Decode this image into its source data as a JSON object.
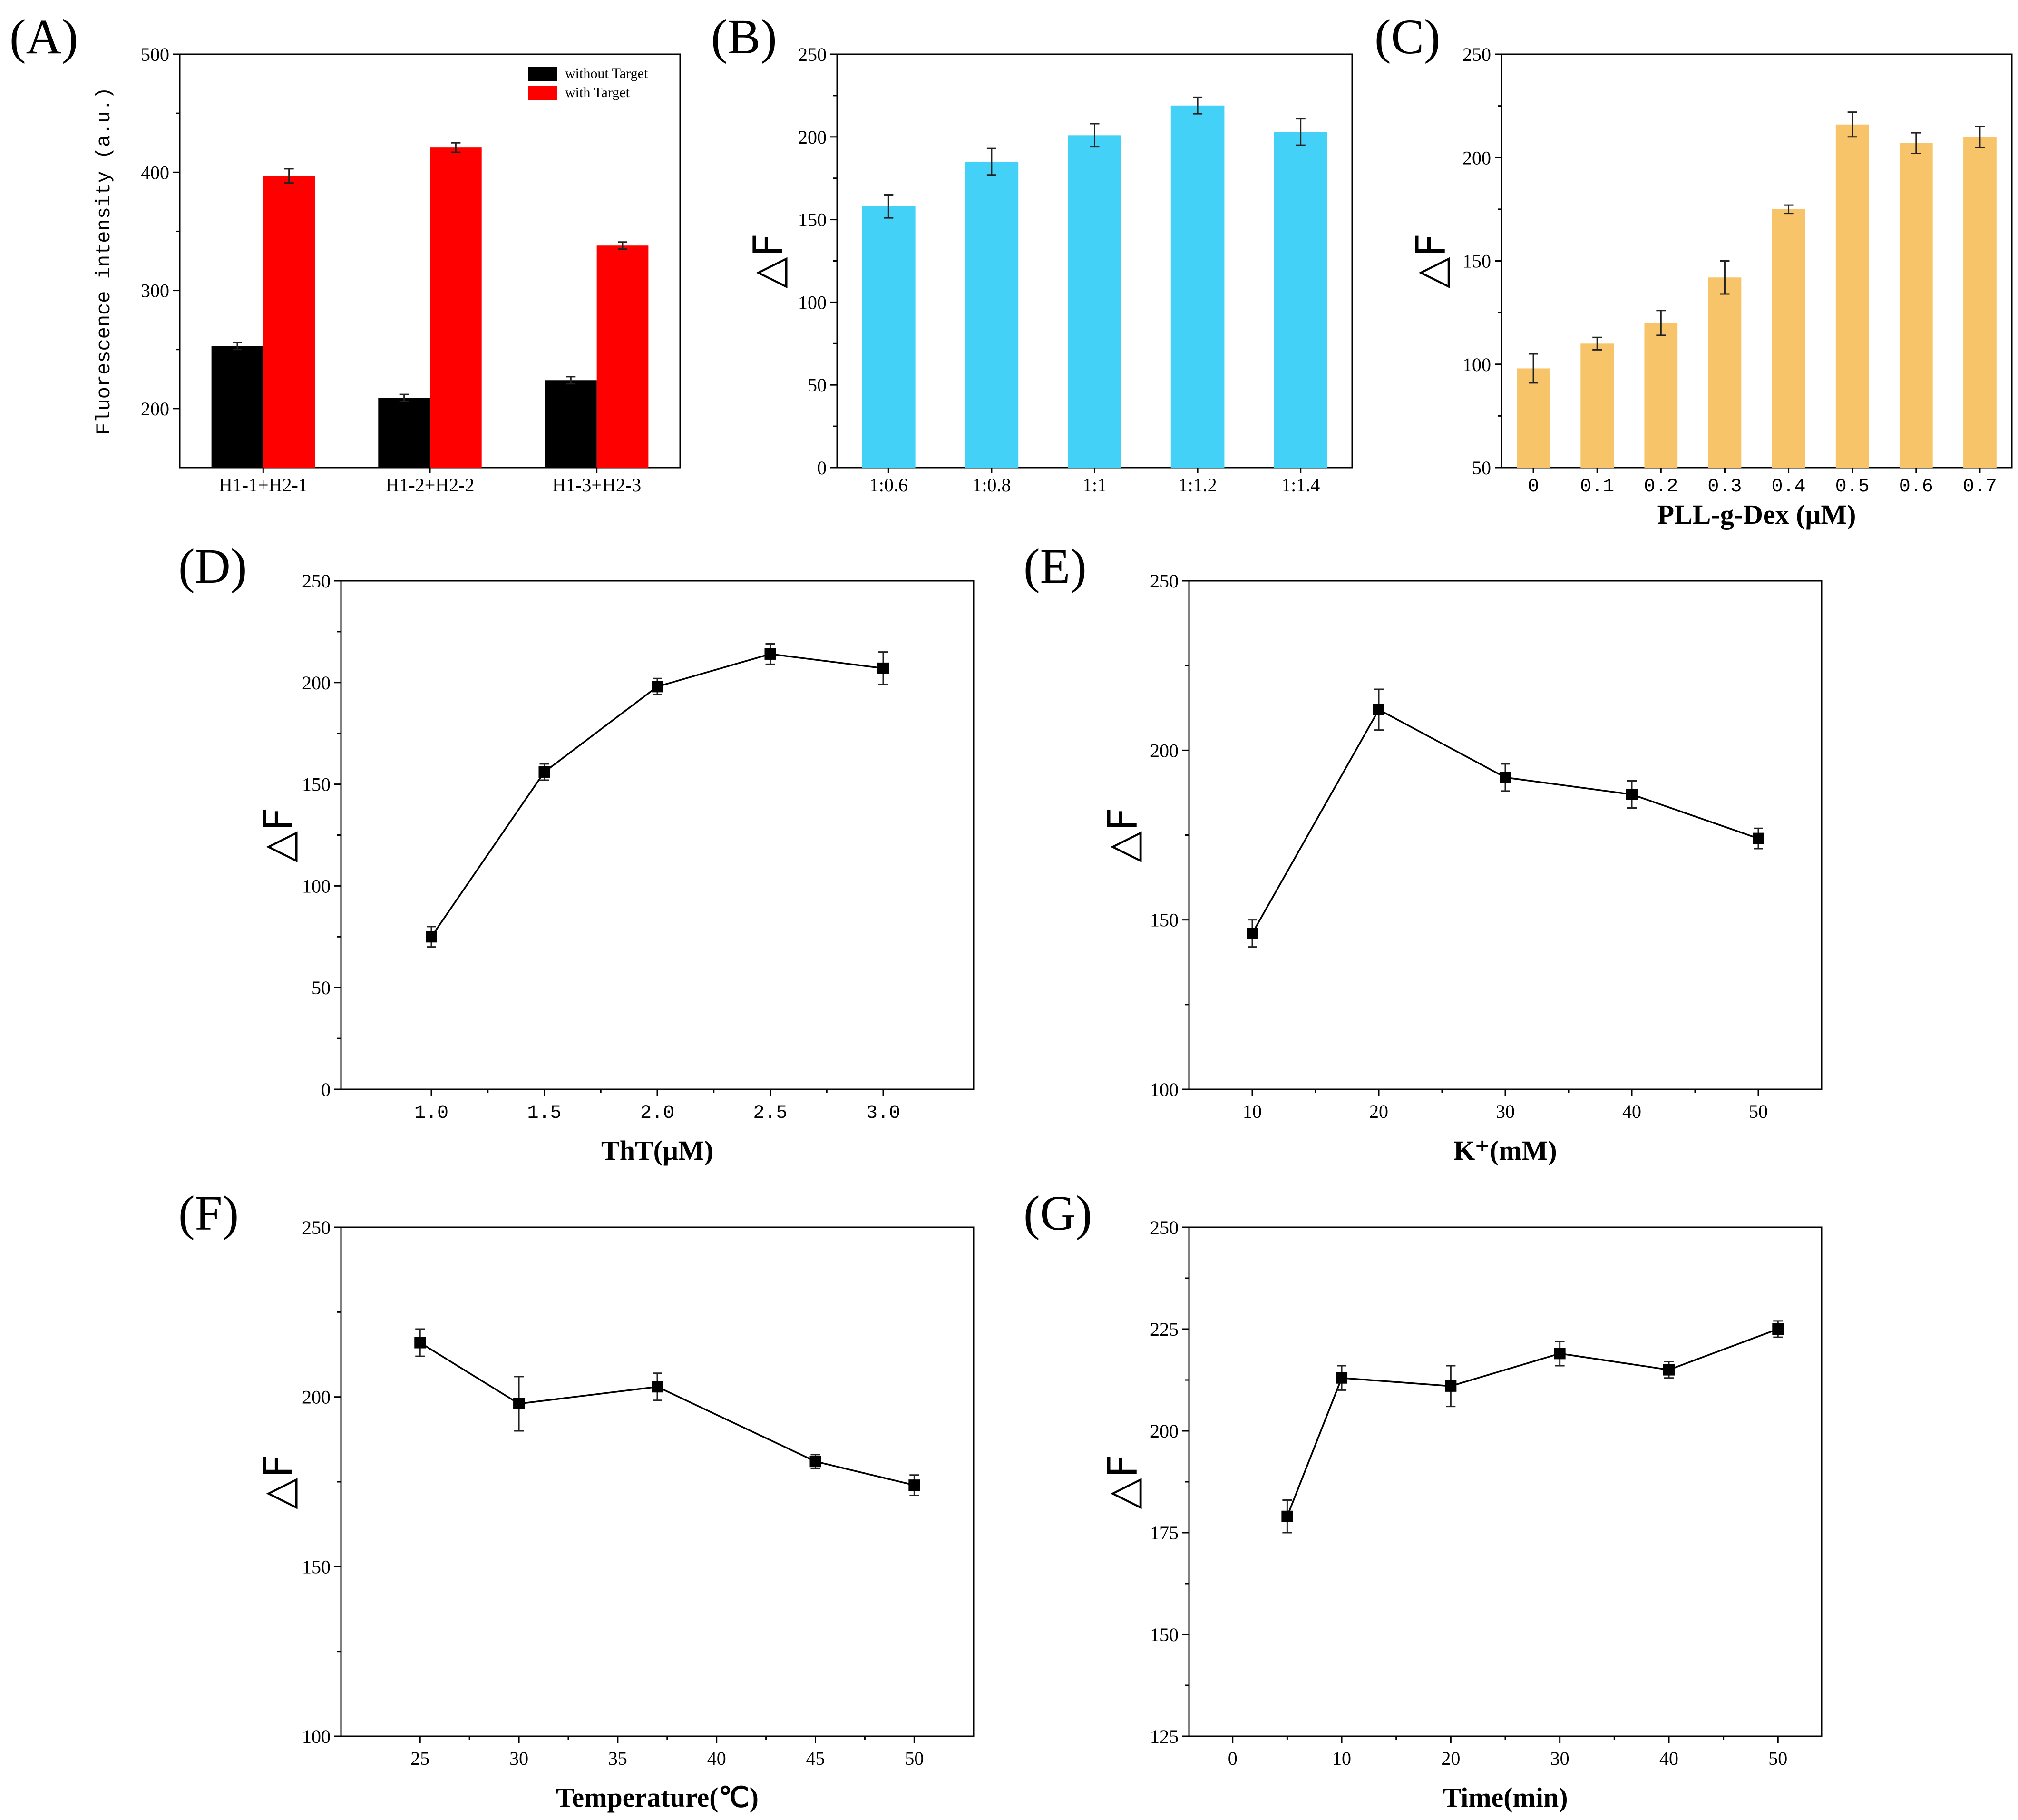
{
  "figure": {
    "panels": [
      "(A)",
      "(B)",
      "(C)",
      "(D)",
      "(E)",
      "(F)",
      "(G)"
    ]
  },
  "colors": {
    "without_target": "#000000",
    "with_target": "#ff0000",
    "panel_b_bar": "#44d1f8",
    "panel_c_bar": "#f8c469"
  },
  "chart_data": [
    {
      "id": "A",
      "label": "(A)",
      "type": "bar",
      "xlabel": "",
      "ylabel": "Fluorescence intensity (a.u.)",
      "ylim": [
        150,
        500
      ],
      "yticks": [
        200,
        300,
        400,
        500
      ],
      "categories": [
        "H1-1+H2-1",
        "H1-2+H2-2",
        "H1-3+H2-3"
      ],
      "series": [
        {
          "name": "without Target",
          "color": "#000000",
          "values": [
            253,
            209,
            224
          ],
          "errors": [
            3,
            3,
            3
          ]
        },
        {
          "name": "with Target",
          "color": "#ff0000",
          "values": [
            397,
            421,
            338
          ],
          "errors": [
            6,
            4,
            3
          ]
        }
      ],
      "legend": "top-right"
    },
    {
      "id": "B",
      "label": "(B)",
      "type": "bar",
      "xlabel": "",
      "ylabel": "△F",
      "ylim": [
        0,
        250
      ],
      "yticks": [
        0,
        50,
        100,
        150,
        200,
        250
      ],
      "categories": [
        "1:0.6",
        "1:0.8",
        "1:1",
        "1:1.2",
        "1:1.4"
      ],
      "values": [
        158,
        185,
        201,
        219,
        203
      ],
      "errors": [
        7,
        8,
        7,
        5,
        8
      ],
      "color": "#44d1f8"
    },
    {
      "id": "C",
      "label": "(C)",
      "type": "bar",
      "xlabel": "PLL-g-Dex (μM)",
      "ylabel": "△F",
      "ylim": [
        50,
        250
      ],
      "yticks": [
        50,
        100,
        150,
        200,
        250
      ],
      "categories": [
        "0",
        "0.1",
        "0.2",
        "0.3",
        "0.4",
        "0.5",
        "0.6",
        "0.7"
      ],
      "values": [
        98,
        110,
        120,
        142,
        175,
        216,
        207,
        210
      ],
      "errors": [
        7,
        3,
        6,
        8,
        2,
        6,
        5,
        5
      ],
      "color": "#f8c469"
    },
    {
      "id": "D",
      "label": "(D)",
      "type": "line",
      "xlabel": "ThT(μM)",
      "ylabel": "△F",
      "xlim": [
        0.6,
        3.4
      ],
      "ylim": [
        0,
        250
      ],
      "xticks": [
        "1.0",
        "1.5",
        "2.0",
        "2.5",
        "3.0"
      ],
      "yticks": [
        0,
        50,
        100,
        150,
        200,
        250
      ],
      "x": [
        1.0,
        1.5,
        2.0,
        2.5,
        3.0
      ],
      "y": [
        75,
        156,
        198,
        214,
        207
      ],
      "errors": [
        5,
        4,
        4,
        5,
        8
      ]
    },
    {
      "id": "E",
      "label": "(E)",
      "type": "line",
      "xlabel": "K⁺(mM)",
      "ylabel": "△F",
      "xlim": [
        5,
        55
      ],
      "ylim": [
        100,
        250
      ],
      "xticks": [
        "10",
        "20",
        "30",
        "40",
        "50"
      ],
      "yticks": [
        100,
        150,
        200,
        250
      ],
      "x": [
        10,
        20,
        30,
        40,
        50
      ],
      "y": [
        146,
        212,
        192,
        187,
        174
      ],
      "errors": [
        4,
        6,
        4,
        4,
        3
      ]
    },
    {
      "id": "F",
      "label": "(F)",
      "type": "line",
      "xlabel": "Temperature(℃)",
      "ylabel": "△F",
      "xlim": [
        21,
        53
      ],
      "ylim": [
        100,
        250
      ],
      "xticks": [
        "25",
        "30",
        "35",
        "40",
        "45",
        "50"
      ],
      "yticks": [
        100,
        150,
        200,
        250
      ],
      "x": [
        25,
        30,
        37,
        45,
        50
      ],
      "y": [
        216,
        198,
        203,
        181,
        174
      ],
      "errors": [
        4,
        8,
        4,
        2,
        3
      ]
    },
    {
      "id": "G",
      "label": "(G)",
      "type": "line",
      "xlabel": "Time(min)",
      "ylabel": "△F",
      "xlim": [
        -4,
        54
      ],
      "ylim": [
        125,
        250
      ],
      "xticks": [
        "0",
        "10",
        "20",
        "30",
        "40",
        "50"
      ],
      "yticks": [
        125,
        150,
        175,
        200,
        225,
        250
      ],
      "x": [
        5,
        10,
        20,
        30,
        40,
        50
      ],
      "y": [
        179,
        213,
        211,
        219,
        215,
        225
      ],
      "errors": [
        4,
        3,
        5,
        3,
        2,
        2
      ]
    }
  ]
}
